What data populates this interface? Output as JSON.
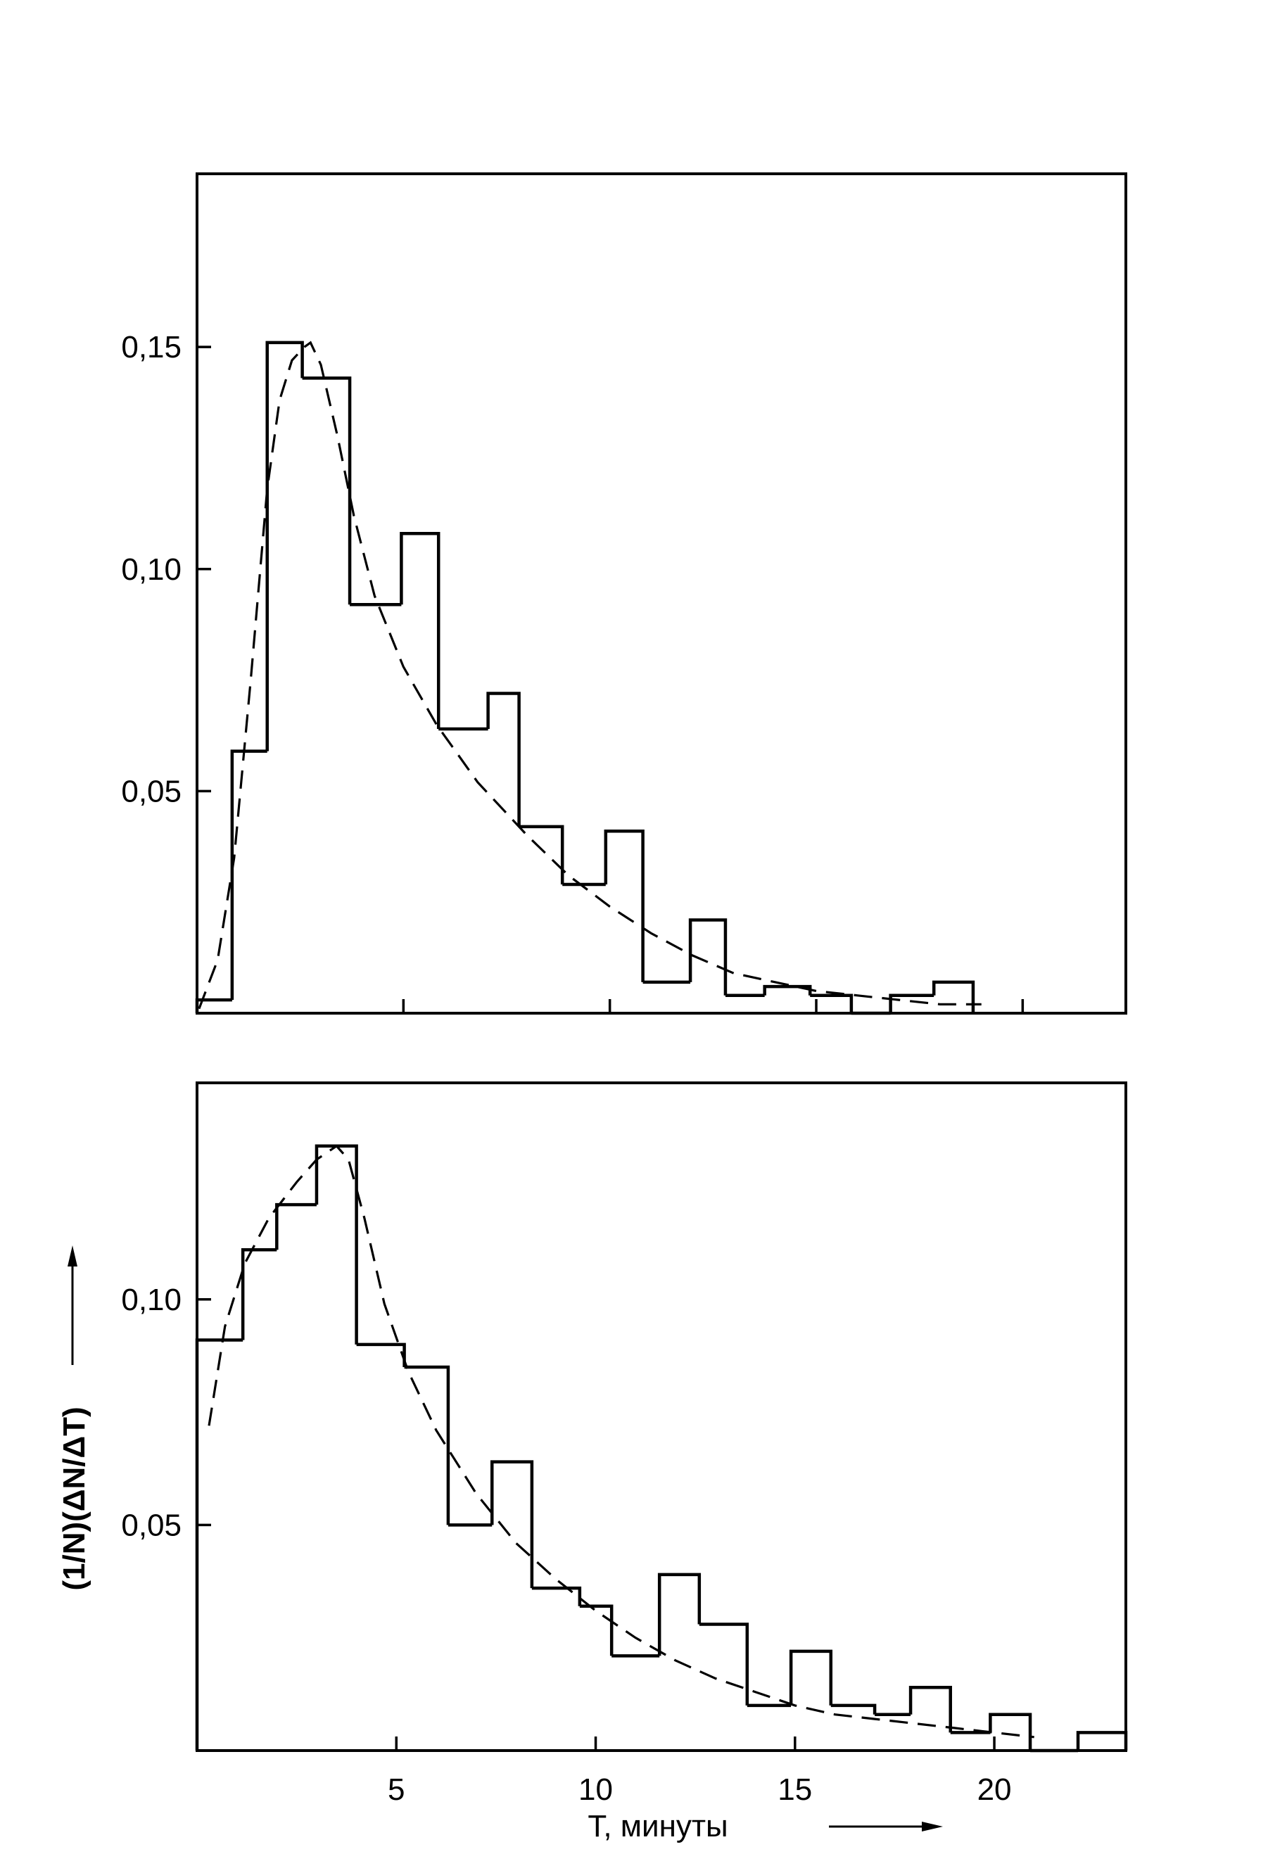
{
  "chart_data": [
    {
      "type": "bar",
      "panel": "top",
      "title": "",
      "xlabel": "T, минуты",
      "ylabel": "(1/N)(ΔN/ΔT)",
      "xlim": [
        0,
        22.5
      ],
      "ylim": [
        0,
        0.189
      ],
      "y_ticks": [
        0.05,
        0.1,
        0.15
      ],
      "y_tick_labels": [
        "0,05",
        "0,10",
        "0,15"
      ],
      "x_ticks": [
        5,
        10,
        15,
        20
      ],
      "bins": [
        {
          "x0": 0.0,
          "x1": 0.85,
          "value": 0.003
        },
        {
          "x0": 0.85,
          "x1": 1.7,
          "value": 0.059
        },
        {
          "x0": 1.7,
          "x1": 2.55,
          "value": 0.151
        },
        {
          "x0": 2.55,
          "x1": 3.7,
          "value": 0.143
        },
        {
          "x0": 3.7,
          "x1": 4.95,
          "value": 0.092
        },
        {
          "x0": 4.95,
          "x1": 5.85,
          "value": 0.108
        },
        {
          "x0": 5.85,
          "x1": 7.05,
          "value": 0.064
        },
        {
          "x0": 7.05,
          "x1": 7.8,
          "value": 0.072
        },
        {
          "x0": 7.8,
          "x1": 8.85,
          "value": 0.042
        },
        {
          "x0": 8.85,
          "x1": 9.9,
          "value": 0.029
        },
        {
          "x0": 9.9,
          "x1": 10.8,
          "value": 0.041
        },
        {
          "x0": 10.8,
          "x1": 11.95,
          "value": 0.007
        },
        {
          "x0": 11.95,
          "x1": 12.8,
          "value": 0.021
        },
        {
          "x0": 12.8,
          "x1": 13.75,
          "value": 0.004
        },
        {
          "x0": 13.75,
          "x1": 14.85,
          "value": 0.006
        },
        {
          "x0": 14.85,
          "x1": 15.85,
          "value": 0.004
        },
        {
          "x0": 15.85,
          "x1": 16.8,
          "value": 0.0
        },
        {
          "x0": 16.8,
          "x1": 17.85,
          "value": 0.004
        },
        {
          "x0": 17.85,
          "x1": 18.8,
          "value": 0.007
        }
      ],
      "fit_curve": {
        "x": [
          0.05,
          0.5,
          0.9,
          1.3,
          1.7,
          2.0,
          2.3,
          2.6,
          2.75,
          3.0,
          3.4,
          3.8,
          4.3,
          5.0,
          5.8,
          6.8,
          8.0,
          9.0,
          10.0,
          11.0,
          12.0,
          13.0,
          14.0,
          15.0,
          16.0,
          17.0,
          18.0,
          19.0
        ],
        "y": [
          0.001,
          0.012,
          0.035,
          0.075,
          0.118,
          0.138,
          0.147,
          0.15,
          0.151,
          0.146,
          0.13,
          0.112,
          0.094,
          0.078,
          0.065,
          0.052,
          0.04,
          0.031,
          0.024,
          0.018,
          0.013,
          0.009,
          0.007,
          0.005,
          0.004,
          0.003,
          0.002,
          0.002
        ]
      }
    },
    {
      "type": "bar",
      "panel": "bottom",
      "title": "",
      "xlabel": "T, минуты",
      "ylabel": "(1/N)(ΔN/ΔT)",
      "xlim": [
        0,
        23.3
      ],
      "ylim": [
        0,
        0.148
      ],
      "y_ticks": [
        0.05,
        0.1
      ],
      "y_tick_labels": [
        "0,05",
        "0,10"
      ],
      "x_ticks": [
        5,
        10,
        15,
        20
      ],
      "x_tick_labels": [
        "5",
        "10",
        "15",
        "20"
      ],
      "bins": [
        {
          "x0": 0.0,
          "x1": 1.15,
          "value": 0.091
        },
        {
          "x0": 1.15,
          "x1": 2.0,
          "value": 0.111
        },
        {
          "x0": 2.0,
          "x1": 3.0,
          "value": 0.121
        },
        {
          "x0": 3.0,
          "x1": 4.0,
          "value": 0.134
        },
        {
          "x0": 4.0,
          "x1": 5.2,
          "value": 0.09
        },
        {
          "x0": 5.2,
          "x1": 6.3,
          "value": 0.085
        },
        {
          "x0": 6.3,
          "x1": 7.4,
          "value": 0.05
        },
        {
          "x0": 7.4,
          "x1": 8.4,
          "value": 0.064
        },
        {
          "x0": 8.4,
          "x1": 9.6,
          "value": 0.036
        },
        {
          "x0": 9.6,
          "x1": 10.4,
          "value": 0.032
        },
        {
          "x0": 10.4,
          "x1": 11.6,
          "value": 0.021
        },
        {
          "x0": 11.6,
          "x1": 12.6,
          "value": 0.039
        },
        {
          "x0": 12.6,
          "x1": 13.8,
          "value": 0.028
        },
        {
          "x0": 13.8,
          "x1": 14.9,
          "value": 0.01
        },
        {
          "x0": 14.9,
          "x1": 15.9,
          "value": 0.022
        },
        {
          "x0": 15.9,
          "x1": 17.0,
          "value": 0.01
        },
        {
          "x0": 17.0,
          "x1": 17.9,
          "value": 0.008
        },
        {
          "x0": 17.9,
          "x1": 18.9,
          "value": 0.014
        },
        {
          "x0": 18.9,
          "x1": 19.9,
          "value": 0.004
        },
        {
          "x0": 19.9,
          "x1": 20.9,
          "value": 0.008
        },
        {
          "x0": 20.9,
          "x1": 22.1,
          "value": 0.0
        },
        {
          "x0": 22.1,
          "x1": 23.3,
          "value": 0.004
        }
      ],
      "fit_curve": {
        "x": [
          0.3,
          0.7,
          1.2,
          1.8,
          2.5,
          3.0,
          3.5,
          3.8,
          4.2,
          4.7,
          5.3,
          6.0,
          7.0,
          8.0,
          9.0,
          10.0,
          11.0,
          12.0,
          13.0,
          14.0,
          15.0,
          16.0,
          17.0,
          18.0,
          19.0,
          20.0,
          21.0
        ],
        "y": [
          0.072,
          0.094,
          0.108,
          0.118,
          0.126,
          0.131,
          0.134,
          0.131,
          0.118,
          0.099,
          0.084,
          0.071,
          0.057,
          0.046,
          0.038,
          0.031,
          0.025,
          0.02,
          0.016,
          0.013,
          0.01,
          0.008,
          0.007,
          0.006,
          0.005,
          0.004,
          0.003
        ]
      }
    }
  ]
}
